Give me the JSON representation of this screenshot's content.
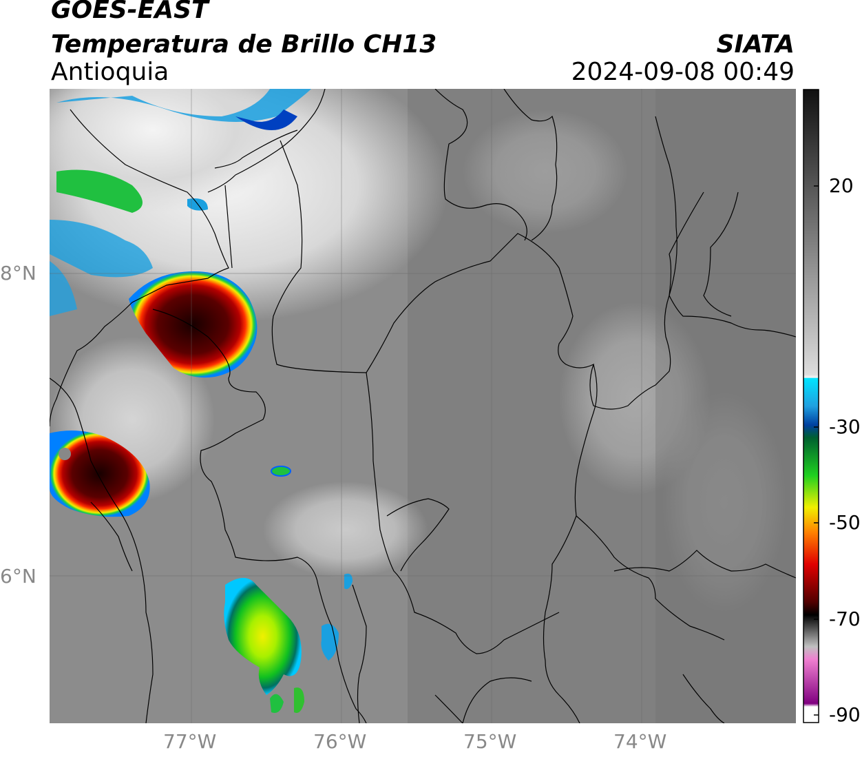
{
  "header": {
    "satellite": "GOES-EAST",
    "product": "Temperatura de Brillo CH13",
    "region": "Antioquia",
    "agency": "SIATA",
    "datetime": "2024-09-08 00:49"
  },
  "map": {
    "lon_range": [
      -77.95,
      -73.0
    ],
    "lat_range": [
      5.0,
      9.2
    ],
    "lat_ticks": [
      "8°N",
      "6°N"
    ],
    "lon_ticks": [
      "77°W",
      "76°W",
      "75°W",
      "74°W"
    ]
  },
  "colorbar": {
    "ticks": [
      "20",
      "-30",
      "-50",
      "-70",
      "-90"
    ],
    "colors": {
      "warm_top": "#111111",
      "gray_mid": "#9a9a9a",
      "white": "#f2f2f2",
      "cyan": "#00e5ff",
      "blue": "#0040c0",
      "green": "#00c000",
      "yellow": "#f5e600",
      "orange": "#ff8000",
      "red": "#d00000",
      "dark_red": "#4a0000",
      "black": "#000000",
      "pink": "#e060c0",
      "purple": "#800080"
    }
  }
}
